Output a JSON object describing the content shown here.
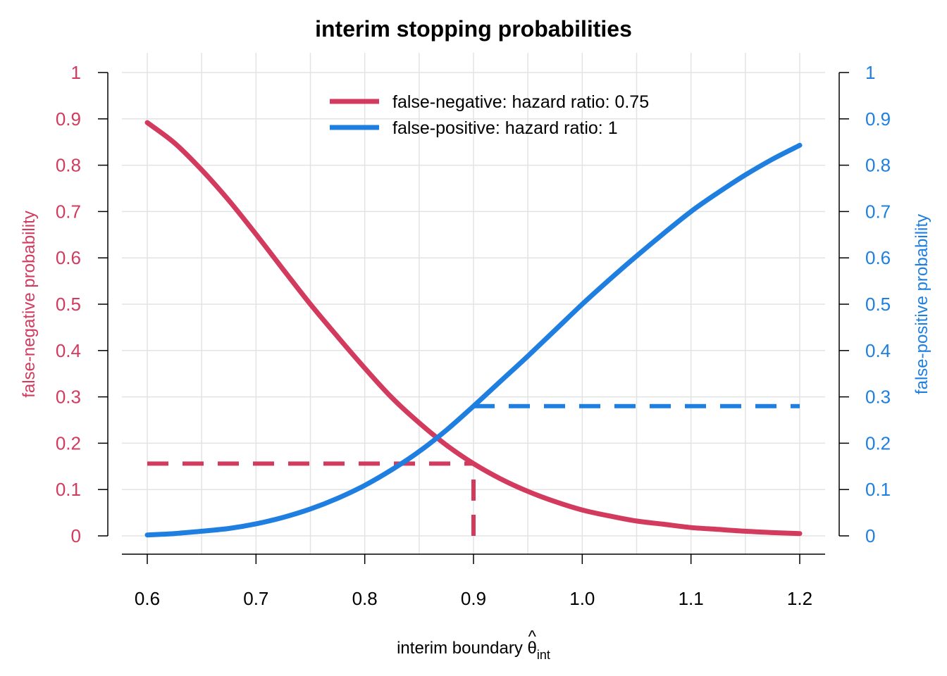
{
  "chart_data": {
    "type": "line",
    "title": "interim stopping probabilities",
    "xlabel": {
      "prefix": "interim boundary ",
      "symbol": "θ",
      "hat": "^",
      "subscript": "int"
    },
    "ylabel_left": "false-negative probability",
    "ylabel_right": "false-positive probability",
    "xlim": [
      0.6,
      1.2
    ],
    "ylim": [
      0,
      1
    ],
    "x_ticks": [
      0.6,
      0.7,
      0.8,
      0.9,
      1.0,
      1.1,
      1.2
    ],
    "x_tick_labels": [
      "0.6",
      "0.7",
      "0.8",
      "0.9",
      "1.0",
      "1.1",
      "1.2"
    ],
    "y_ticks": [
      0,
      0.1,
      0.2,
      0.3,
      0.4,
      0.5,
      0.6,
      0.7,
      0.8,
      0.9,
      1
    ],
    "y_tick_labels": [
      "0",
      "0.1",
      "0.2",
      "0.3",
      "0.4",
      "0.5",
      "0.6",
      "0.7",
      "0.8",
      "0.9",
      "1"
    ],
    "grid": true,
    "legend_position": "top-center",
    "colors": {
      "negative": "#D23B5E",
      "positive": "#1E7FE0"
    },
    "series": [
      {
        "name": "false-negative: hazard ratio: 0.75",
        "color": "#D23B5E",
        "x": [
          0.6,
          0.625,
          0.65,
          0.675,
          0.7,
          0.725,
          0.75,
          0.775,
          0.8,
          0.825,
          0.85,
          0.875,
          0.9,
          0.925,
          0.95,
          0.975,
          1.0,
          1.025,
          1.05,
          1.075,
          1.1,
          1.125,
          1.15,
          1.175,
          1.2
        ],
        "y": [
          0.892,
          0.848,
          0.79,
          0.724,
          0.651,
          0.575,
          0.5,
          0.43,
          0.362,
          0.298,
          0.244,
          0.196,
          0.156,
          0.123,
          0.096,
          0.074,
          0.056,
          0.043,
          0.032,
          0.025,
          0.018,
          0.014,
          0.01,
          0.007,
          0.005
        ]
      },
      {
        "name": "false-positive: hazard ratio: 1",
        "color": "#1E7FE0",
        "x": [
          0.6,
          0.625,
          0.65,
          0.675,
          0.7,
          0.725,
          0.75,
          0.775,
          0.8,
          0.825,
          0.85,
          0.875,
          0.9,
          0.925,
          0.95,
          0.975,
          1.0,
          1.025,
          1.05,
          1.075,
          1.1,
          1.125,
          1.15,
          1.175,
          1.2
        ],
        "y": [
          0.002,
          0.005,
          0.01,
          0.016,
          0.026,
          0.04,
          0.058,
          0.081,
          0.109,
          0.143,
          0.182,
          0.228,
          0.28,
          0.334,
          0.388,
          0.444,
          0.5,
          0.553,
          0.604,
          0.653,
          0.7,
          0.741,
          0.779,
          0.813,
          0.843
        ]
      }
    ],
    "annotations": [
      {
        "type": "hline",
        "series": "false-negative: hazard ratio: 0.75",
        "y": 0.156,
        "x_from": 0.6,
        "x_to": 0.9,
        "style": "dashed"
      },
      {
        "type": "vline",
        "series": "false-negative: hazard ratio: 0.75",
        "x": 0.9,
        "y_from": 0.0,
        "y_to": 0.156,
        "style": "dashed"
      },
      {
        "type": "hline",
        "series": "false-positive: hazard ratio: 1",
        "y": 0.28,
        "x_from": 0.9,
        "x_to": 1.2,
        "style": "dashed"
      }
    ]
  }
}
